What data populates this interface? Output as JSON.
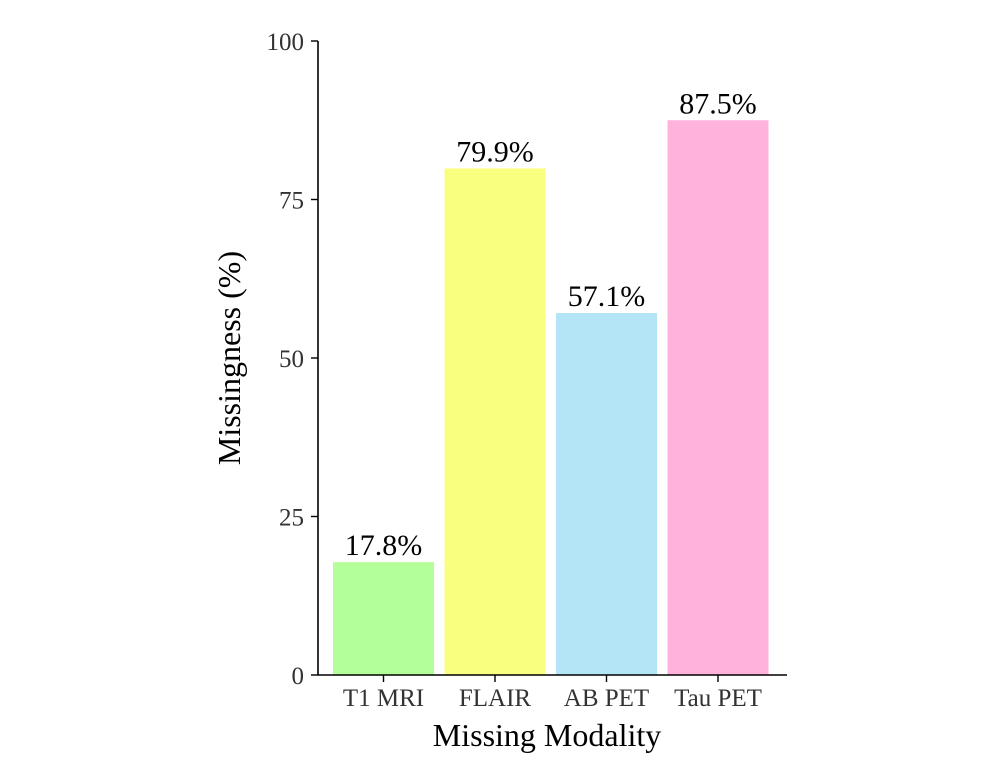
{
  "chart_data": {
    "type": "bar",
    "title": "",
    "xlabel": "Missing Modality",
    "ylabel": "Missingness (%)",
    "ylim": [
      0,
      100
    ],
    "yticks": [
      0,
      25,
      50,
      75,
      100
    ],
    "grid": false,
    "categories": [
      "T1 MRI",
      "FLAIR",
      "AB PET",
      "Tau PET"
    ],
    "values": [
      17.8,
      79.9,
      57.1,
      87.5
    ],
    "data_labels": [
      "17.8%",
      "79.9%",
      "57.1%",
      "87.5%"
    ],
    "colors": [
      "#b3ff99",
      "#f9ff7f",
      "#b3e5f7",
      "#ffb3dc"
    ]
  }
}
